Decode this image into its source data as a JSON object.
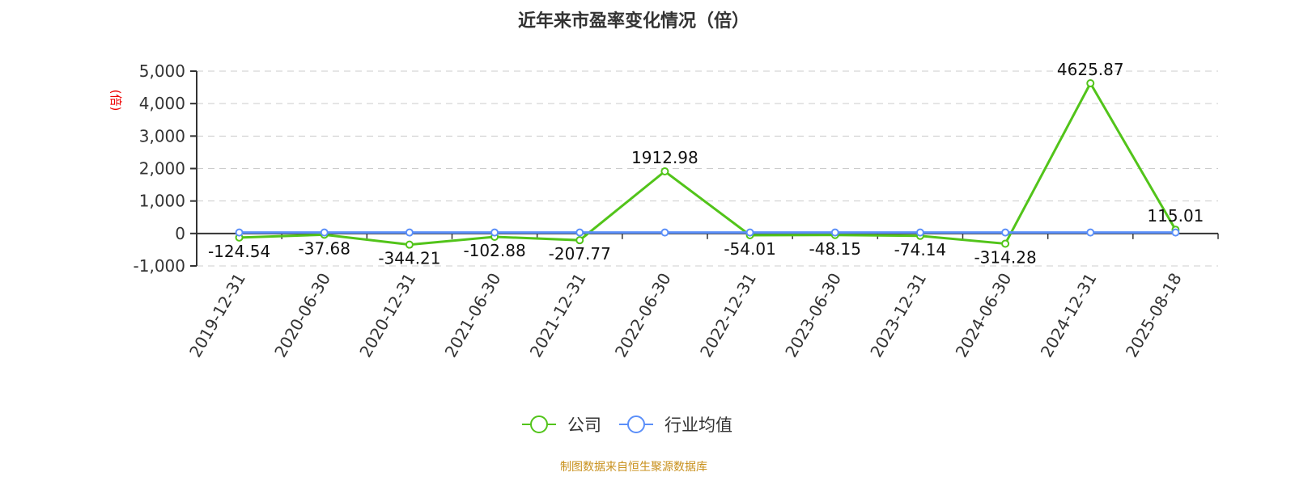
{
  "title": "近年来市盈率变化情况（倍）",
  "source": "制图数据来自恒生聚源数据库",
  "chart_data": {
    "type": "line",
    "title": "近年来市盈率变化情况（倍）",
    "ylabel": "(倍)",
    "xlabel": "",
    "ylim": [
      -1000,
      5000
    ],
    "yticks": [
      -1000,
      0,
      1000,
      2000,
      3000,
      4000,
      5000
    ],
    "ytick_labels": [
      "-1,000",
      "0",
      "1,000",
      "2,000",
      "3,000",
      "4,000",
      "5,000"
    ],
    "grid": true,
    "legend": "bottom",
    "categories": [
      "2019-12-31",
      "2020-06-30",
      "2020-12-31",
      "2021-06-30",
      "2021-12-31",
      "2022-06-30",
      "2022-12-31",
      "2023-06-30",
      "2023-12-31",
      "2024-06-30",
      "2024-12-31",
      "2025-08-18"
    ],
    "series": [
      {
        "name": "公司",
        "color": "#52c41a",
        "values": [
          -124.54,
          -37.68,
          -344.21,
          -102.88,
          -207.77,
          1912.98,
          -54.01,
          -48.15,
          -74.14,
          -314.28,
          4625.87,
          115.01
        ],
        "data_labels": [
          "-124.54",
          "-37.68",
          "-344.21",
          "-102.88",
          "-207.77",
          "1912.98",
          "-54.01",
          "-48.15",
          "-74.14",
          "-314.28",
          "4625.87",
          "115.01"
        ]
      },
      {
        "name": "行业均值",
        "color": "#5b8ff9",
        "values": [
          30,
          30,
          30,
          30,
          30,
          30,
          30,
          30,
          30,
          30,
          30,
          30
        ]
      }
    ]
  }
}
